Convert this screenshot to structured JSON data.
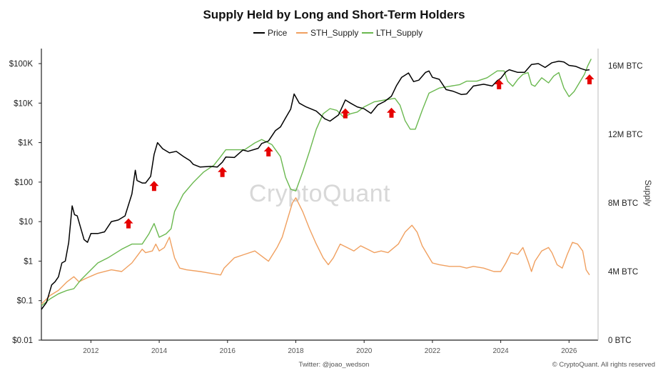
{
  "chart_data": {
    "type": "line",
    "title": "Supply Held by Long and Short-Term Holders",
    "watermark": "CryptoQuant",
    "footer_left": "Twitter: @joao_wedson",
    "footer_right": "© CryptoQuant. All rights reserved",
    "y_left": {
      "scale": "log",
      "ticks": [
        "$0.01",
        "$0.1",
        "$1",
        "$10",
        "$100",
        "$1K",
        "$10K",
        "$100K"
      ],
      "range": [
        0.01,
        100000
      ]
    },
    "y_right": {
      "label": "Supply",
      "ticks": [
        "0 BTC",
        "4M BTC",
        "8M BTC",
        "12M BTC",
        "16M BTC"
      ],
      "range": [
        0,
        16000000
      ]
    },
    "x": {
      "ticks": [
        "2012",
        "2014",
        "2016",
        "2018",
        "2020",
        "2022",
        "2024",
        "2026"
      ],
      "range": [
        2010.55,
        2026.85
      ]
    },
    "legend": {
      "placement": "top-center"
    },
    "series": [
      {
        "name": "Price",
        "color": "#000000",
        "axis": "left",
        "points": [
          [
            2010.55,
            0.06
          ],
          [
            2010.7,
            0.09
          ],
          [
            2010.85,
            0.25
          ],
          [
            2010.95,
            0.3
          ],
          [
            2011.05,
            0.4
          ],
          [
            2011.15,
            0.9
          ],
          [
            2011.25,
            1.0
          ],
          [
            2011.35,
            3
          ],
          [
            2011.45,
            25
          ],
          [
            2011.52,
            15
          ],
          [
            2011.6,
            14
          ],
          [
            2011.7,
            7
          ],
          [
            2011.8,
            3.5
          ],
          [
            2011.9,
            3
          ],
          [
            2012.0,
            5
          ],
          [
            2012.2,
            5
          ],
          [
            2012.4,
            5.5
          ],
          [
            2012.6,
            10
          ],
          [
            2012.8,
            11
          ],
          [
            2013.0,
            14
          ],
          [
            2013.2,
            50
          ],
          [
            2013.3,
            200
          ],
          [
            2013.35,
            110
          ],
          [
            2013.5,
            95
          ],
          [
            2013.6,
            95
          ],
          [
            2013.75,
            140
          ],
          [
            2013.85,
            500
          ],
          [
            2013.95,
            1000
          ],
          [
            2014.1,
            700
          ],
          [
            2014.3,
            550
          ],
          [
            2014.5,
            600
          ],
          [
            2014.7,
            450
          ],
          [
            2014.9,
            350
          ],
          [
            2015.0,
            280
          ],
          [
            2015.2,
            240
          ],
          [
            2015.5,
            250
          ],
          [
            2015.7,
            240
          ],
          [
            2015.85,
            320
          ],
          [
            2015.95,
            430
          ],
          [
            2016.2,
            420
          ],
          [
            2016.45,
            650
          ],
          [
            2016.6,
            600
          ],
          [
            2016.9,
            720
          ],
          [
            2017.0,
            950
          ],
          [
            2017.2,
            1100
          ],
          [
            2017.4,
            2000
          ],
          [
            2017.55,
            2500
          ],
          [
            2017.7,
            4200
          ],
          [
            2017.85,
            7000
          ],
          [
            2017.95,
            17000
          ],
          [
            2018.1,
            10000
          ],
          [
            2018.3,
            8000
          ],
          [
            2018.6,
            6300
          ],
          [
            2018.85,
            4000
          ],
          [
            2019.0,
            3500
          ],
          [
            2019.25,
            5000
          ],
          [
            2019.45,
            12000
          ],
          [
            2019.6,
            10000
          ],
          [
            2019.8,
            8000
          ],
          [
            2020.0,
            7200
          ],
          [
            2020.2,
            5500
          ],
          [
            2020.4,
            9000
          ],
          [
            2020.6,
            11000
          ],
          [
            2020.8,
            15000
          ],
          [
            2020.95,
            28000
          ],
          [
            2021.1,
            45000
          ],
          [
            2021.3,
            58000
          ],
          [
            2021.45,
            35000
          ],
          [
            2021.6,
            38000
          ],
          [
            2021.8,
            60000
          ],
          [
            2021.9,
            65000
          ],
          [
            2022.0,
            45000
          ],
          [
            2022.2,
            40000
          ],
          [
            2022.4,
            22000
          ],
          [
            2022.6,
            20000
          ],
          [
            2022.85,
            16500
          ],
          [
            2023.0,
            17000
          ],
          [
            2023.2,
            27000
          ],
          [
            2023.5,
            30000
          ],
          [
            2023.75,
            27000
          ],
          [
            2023.9,
            37000
          ],
          [
            2024.0,
            42000
          ],
          [
            2024.15,
            62000
          ],
          [
            2024.25,
            70000
          ],
          [
            2024.5,
            60000
          ],
          [
            2024.7,
            60000
          ],
          [
            2024.9,
            95000
          ],
          [
            2025.1,
            100000
          ],
          [
            2025.3,
            80000
          ],
          [
            2025.5,
            105000
          ],
          [
            2025.7,
            115000
          ],
          [
            2025.85,
            110000
          ],
          [
            2026.0,
            90000
          ],
          [
            2026.2,
            85000
          ],
          [
            2026.35,
            75000
          ],
          [
            2026.5,
            68000
          ],
          [
            2026.6,
            70000
          ]
        ]
      },
      {
        "name": "STH_Supply",
        "color": "#f0a060",
        "axis": "right",
        "points": [
          [
            2010.55,
            2.1
          ],
          [
            2010.8,
            2.6
          ],
          [
            2011.05,
            2.9
          ],
          [
            2011.3,
            3.4
          ],
          [
            2011.5,
            3.7
          ],
          [
            2011.65,
            3.4
          ],
          [
            2011.85,
            3.6
          ],
          [
            2012.2,
            3.9
          ],
          [
            2012.6,
            4.1
          ],
          [
            2012.9,
            4.0
          ],
          [
            2013.2,
            4.5
          ],
          [
            2013.35,
            4.9
          ],
          [
            2013.5,
            5.3
          ],
          [
            2013.6,
            5.1
          ],
          [
            2013.8,
            5.2
          ],
          [
            2013.9,
            5.6
          ],
          [
            2014.0,
            5.2
          ],
          [
            2014.15,
            5.4
          ],
          [
            2014.3,
            6.0
          ],
          [
            2014.45,
            4.8
          ],
          [
            2014.6,
            4.2
          ],
          [
            2014.8,
            4.1
          ],
          [
            2015.2,
            4.0
          ],
          [
            2015.5,
            3.9
          ],
          [
            2015.8,
            3.8
          ],
          [
            2015.9,
            4.2
          ],
          [
            2016.2,
            4.8
          ],
          [
            2016.5,
            5.0
          ],
          [
            2016.8,
            5.2
          ],
          [
            2017.0,
            4.9
          ],
          [
            2017.2,
            4.6
          ],
          [
            2017.45,
            5.4
          ],
          [
            2017.6,
            6.0
          ],
          [
            2017.75,
            7.0
          ],
          [
            2017.9,
            8.0
          ],
          [
            2018.0,
            8.3
          ],
          [
            2018.2,
            7.5
          ],
          [
            2018.4,
            6.5
          ],
          [
            2018.6,
            5.6
          ],
          [
            2018.8,
            4.8
          ],
          [
            2018.95,
            4.4
          ],
          [
            2019.1,
            4.8
          ],
          [
            2019.3,
            5.6
          ],
          [
            2019.5,
            5.4
          ],
          [
            2019.7,
            5.2
          ],
          [
            2019.9,
            5.5
          ],
          [
            2020.1,
            5.3
          ],
          [
            2020.3,
            5.1
          ],
          [
            2020.5,
            5.2
          ],
          [
            2020.7,
            5.1
          ],
          [
            2021.0,
            5.6
          ],
          [
            2021.2,
            6.3
          ],
          [
            2021.4,
            6.7
          ],
          [
            2021.55,
            6.3
          ],
          [
            2021.7,
            5.5
          ],
          [
            2021.85,
            5.0
          ],
          [
            2022.0,
            4.5
          ],
          [
            2022.2,
            4.4
          ],
          [
            2022.5,
            4.3
          ],
          [
            2022.8,
            4.3
          ],
          [
            2023.0,
            4.2
          ],
          [
            2023.2,
            4.3
          ],
          [
            2023.5,
            4.2
          ],
          [
            2023.8,
            4.0
          ],
          [
            2024.0,
            4.0
          ],
          [
            2024.15,
            4.5
          ],
          [
            2024.3,
            5.1
          ],
          [
            2024.5,
            5.0
          ],
          [
            2024.65,
            5.4
          ],
          [
            2024.8,
            4.6
          ],
          [
            2024.9,
            4.0
          ],
          [
            2025.0,
            4.6
          ],
          [
            2025.2,
            5.2
          ],
          [
            2025.4,
            5.4
          ],
          [
            2025.5,
            5.1
          ],
          [
            2025.65,
            4.4
          ],
          [
            2025.8,
            4.2
          ],
          [
            2025.95,
            5.0
          ],
          [
            2026.1,
            5.7
          ],
          [
            2026.25,
            5.6
          ],
          [
            2026.4,
            5.2
          ],
          [
            2026.5,
            4.1
          ],
          [
            2026.6,
            3.8
          ]
        ]
      },
      {
        "name": "LTH_Supply",
        "color": "#6ab84f",
        "axis": "right",
        "points": [
          [
            2010.55,
            2.0
          ],
          [
            2010.8,
            2.4
          ],
          [
            2011.05,
            2.7
          ],
          [
            2011.3,
            2.9
          ],
          [
            2011.5,
            3.0
          ],
          [
            2011.7,
            3.5
          ],
          [
            2011.9,
            3.9
          ],
          [
            2012.2,
            4.5
          ],
          [
            2012.5,
            4.8
          ],
          [
            2012.9,
            5.3
          ],
          [
            2013.2,
            5.6
          ],
          [
            2013.5,
            5.6
          ],
          [
            2013.7,
            6.2
          ],
          [
            2013.85,
            6.8
          ],
          [
            2014.0,
            6.0
          ],
          [
            2014.2,
            6.2
          ],
          [
            2014.35,
            6.5
          ],
          [
            2014.45,
            7.5
          ],
          [
            2014.7,
            8.5
          ],
          [
            2015.0,
            9.2
          ],
          [
            2015.3,
            9.8
          ],
          [
            2015.6,
            10.2
          ],
          [
            2015.8,
            10.7
          ],
          [
            2015.95,
            11.1
          ],
          [
            2016.2,
            11.1
          ],
          [
            2016.5,
            11.1
          ],
          [
            2016.8,
            11.5
          ],
          [
            2017.0,
            11.7
          ],
          [
            2017.3,
            11.4
          ],
          [
            2017.55,
            10.7
          ],
          [
            2017.7,
            9.5
          ],
          [
            2017.85,
            8.8
          ],
          [
            2018.0,
            8.7
          ],
          [
            2018.2,
            9.8
          ],
          [
            2018.4,
            11.0
          ],
          [
            2018.6,
            12.3
          ],
          [
            2018.8,
            13.2
          ],
          [
            2019.0,
            13.5
          ],
          [
            2019.2,
            13.4
          ],
          [
            2019.4,
            13.0
          ],
          [
            2019.6,
            13.2
          ],
          [
            2019.8,
            13.3
          ],
          [
            2020.0,
            13.6
          ],
          [
            2020.3,
            13.9
          ],
          [
            2020.6,
            14.0
          ],
          [
            2020.9,
            14.1
          ],
          [
            2021.05,
            13.7
          ],
          [
            2021.2,
            12.8
          ],
          [
            2021.35,
            12.3
          ],
          [
            2021.5,
            12.3
          ],
          [
            2021.7,
            13.4
          ],
          [
            2021.9,
            14.4
          ],
          [
            2022.2,
            14.7
          ],
          [
            2022.5,
            14.8
          ],
          [
            2022.8,
            14.9
          ],
          [
            2023.0,
            15.1
          ],
          [
            2023.3,
            15.1
          ],
          [
            2023.6,
            15.3
          ],
          [
            2023.9,
            15.7
          ],
          [
            2024.1,
            15.7
          ],
          [
            2024.2,
            15.1
          ],
          [
            2024.35,
            14.8
          ],
          [
            2024.5,
            15.2
          ],
          [
            2024.65,
            15.5
          ],
          [
            2024.8,
            15.6
          ],
          [
            2024.9,
            14.9
          ],
          [
            2025.0,
            14.8
          ],
          [
            2025.2,
            15.3
          ],
          [
            2025.4,
            15.0
          ],
          [
            2025.55,
            15.4
          ],
          [
            2025.7,
            15.6
          ],
          [
            2025.85,
            14.7
          ],
          [
            2026.0,
            14.2
          ],
          [
            2026.15,
            14.5
          ],
          [
            2026.3,
            15.0
          ],
          [
            2026.45,
            15.5
          ],
          [
            2026.55,
            16.0
          ],
          [
            2026.65,
            16.4
          ]
        ]
      }
    ],
    "markers": {
      "shape": "up-arrow",
      "color": "#e60000",
      "points": [
        [
          2013.1,
          9
        ],
        [
          2013.85,
          80
        ],
        [
          2015.85,
          180
        ],
        [
          2017.2,
          600
        ],
        [
          2019.45,
          5500
        ],
        [
          2020.8,
          5700
        ],
        [
          2023.95,
          30000
        ],
        [
          2026.6,
          40000
        ]
      ]
    }
  }
}
